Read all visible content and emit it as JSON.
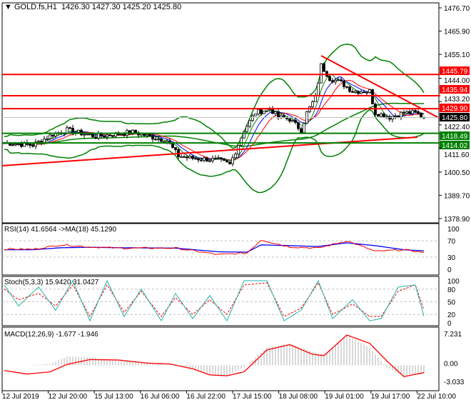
{
  "header": {
    "symbol": "GOLD.fs,H1",
    "ohlc": "1426.30 1427.30 1425.20 1425.80"
  },
  "price_axis": [
    "1476.70",
    "1465.90",
    "1455.10",
    "1444.00",
    "1433.20",
    "1422.40",
    "1411.60",
    "1400.50",
    "1389.70",
    "1378.90"
  ],
  "levels": [
    {
      "value": 1445.79,
      "label": "1445.79",
      "color": "#ff0000"
    },
    {
      "value": 1435.94,
      "label": "1435.94",
      "color": "#ff0000"
    },
    {
      "value": 1429.9,
      "label": "1429.90",
      "color": "#ff0000"
    },
    {
      "value": 1418.49,
      "label": "1418.49",
      "color": "#008000"
    },
    {
      "value": 1414.02,
      "label": "1414.02",
      "color": "#008000"
    }
  ],
  "current_price": {
    "value": 1425.8,
    "label": "1425.80"
  },
  "rsi": {
    "title": "RSI(14) 41.6564  ->MA(18) 45.1290",
    "axis": [
      "100",
      "70",
      "30",
      "0"
    ]
  },
  "stoch": {
    "title": "Stoch(5,3,3) 15.9420 31.0427",
    "axis": [
      "100",
      "80",
      "50",
      "20",
      "0"
    ]
  },
  "macd": {
    "title": "MACD(12,26,9) -1.677 -1.946",
    "axis": [
      "7.231",
      "0.00",
      "-3.033"
    ]
  },
  "time_axis": [
    "12 Jul 2019",
    "12 Jul 20:00",
    "15 Jul 13:00",
    "16 Jul 06:00",
    "16 Jul 22:00",
    "17 Jul 15:00",
    "18 Jul 08:00",
    "19 Jul 01:00",
    "19 Jul 17:00",
    "22 Jul 10:00"
  ],
  "chart_data": {
    "type": "line",
    "title": "GOLD.fs,H1",
    "price_keypoints": {
      "bar": [
        0,
        10,
        17,
        22,
        32,
        45,
        57,
        61,
        65,
        75,
        79,
        81,
        84,
        88,
        93,
        96,
        100,
        104,
        106,
        109,
        111,
        114,
        118,
        122,
        128,
        130,
        135,
        140,
        144,
        147
      ],
      "close": [
        1414,
        1413,
        1418,
        1420,
        1417,
        1419,
        1415,
        1408,
        1407,
        1406,
        1404,
        1410,
        1420,
        1428,
        1430,
        1426,
        1425,
        1420,
        1428,
        1435,
        1450,
        1444,
        1442,
        1438,
        1438,
        1428,
        1426,
        1428,
        1428,
        1425.8
      ]
    },
    "rsi_keypoints": {
      "bar": [
        0,
        10,
        20,
        30,
        40,
        60,
        75,
        85,
        90,
        100,
        110,
        120,
        130,
        140,
        147
      ],
      "rsi": [
        50,
        49,
        60,
        55,
        52,
        52,
        36,
        40,
        72,
        55,
        52,
        70,
        44,
        48,
        41.66
      ],
      "ma": [
        48,
        48,
        53,
        54,
        53,
        52,
        43,
        42,
        60,
        58,
        56,
        65,
        58,
        48,
        45.13
      ]
    },
    "stoch_keypoints": {
      "bar": [
        0,
        5,
        12,
        18,
        24,
        30,
        36,
        42,
        48,
        55,
        60,
        66,
        72,
        78,
        84,
        92,
        98,
        104,
        110,
        115,
        122,
        128,
        132,
        138,
        144,
        147
      ],
      "main": [
        90,
        40,
        85,
        30,
        100,
        5,
        100,
        15,
        80,
        5,
        70,
        10,
        65,
        5,
        100,
        100,
        5,
        30,
        100,
        10,
        55,
        5,
        10,
        85,
        90,
        15.94
      ],
      "signal": [
        80,
        55,
        70,
        40,
        90,
        15,
        90,
        25,
        75,
        15,
        60,
        20,
        55,
        20,
        90,
        95,
        15,
        35,
        95,
        20,
        45,
        15,
        15,
        75,
        90,
        31.04
      ]
    },
    "macd_keypoints": {
      "bar": [
        0,
        8,
        16,
        22,
        30,
        40,
        50,
        58,
        66,
        72,
        78,
        84,
        92,
        100,
        108,
        112,
        120,
        128,
        134,
        140,
        147
      ],
      "macd": [
        -1.2,
        -2,
        -1.5,
        0.2,
        1.3,
        1.2,
        0.5,
        0.3,
        -0.8,
        -2.2,
        -2.4,
        -1.5,
        3.5,
        4.7,
        2.5,
        2.2,
        6.9,
        5,
        1,
        -2.6,
        -1.68
      ],
      "hist": [
        0,
        0,
        0.3,
        2,
        1.8,
        1.2,
        0.6,
        0.4,
        -0.8,
        -2.2,
        -2.3,
        -0.5,
        4,
        5,
        3,
        2.5,
        6.8,
        4,
        -0.5,
        -2.5,
        -1.95
      ]
    },
    "y_range": [
      1378.9,
      1476.7
    ],
    "rsi_range": [
      0,
      100
    ],
    "stoch_range": [
      0,
      100
    ],
    "macd_range": [
      -3.033,
      7.231
    ]
  }
}
